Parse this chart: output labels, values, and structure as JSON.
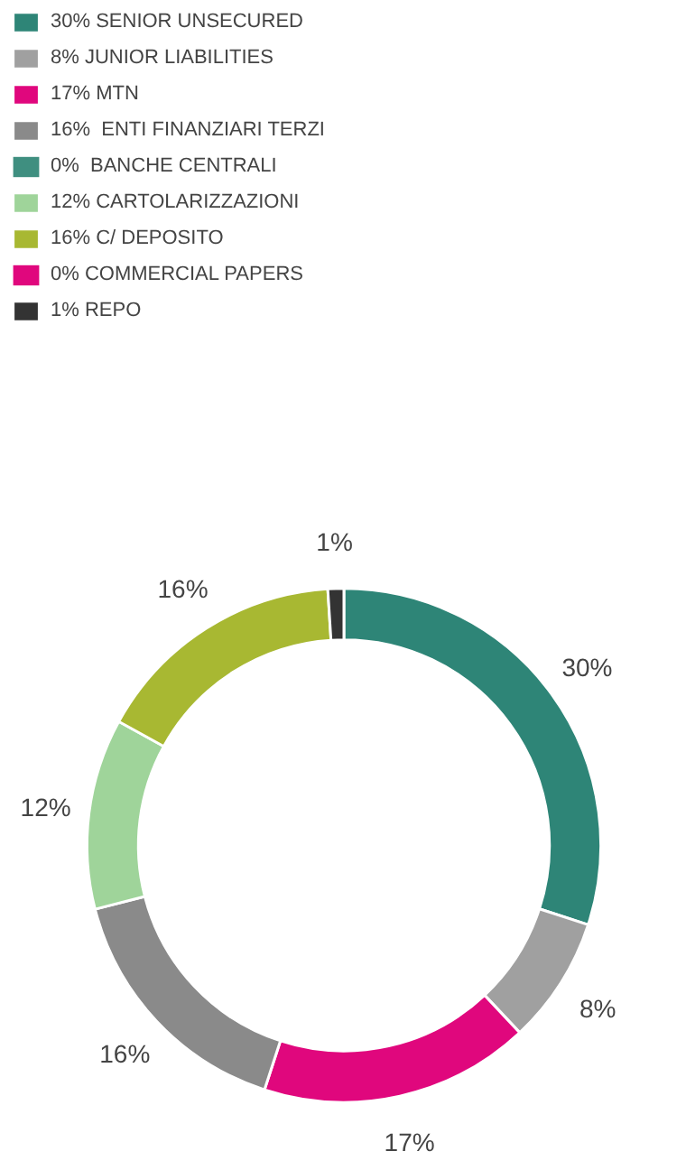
{
  "chart_data": {
    "type": "donut",
    "categories": [
      "30% SENIOR UNSECURED",
      "8% JUNIOR LIABILITIES",
      "17% MTN",
      "16%  ENTI FINANZIARI TERZI",
      "0%  BANCHE CENTRALI",
      "12% CARTOLARIZZAZIONI",
      "16% C/ DEPOSITO",
      "0% COMMERCIAL PAPERS",
      "1% REPO"
    ],
    "values": [
      30,
      8,
      17,
      16,
      0,
      12,
      16,
      0,
      1
    ],
    "colors": [
      "#2e8577",
      "#a0a0a0",
      "#e0077d",
      "#8a8a8a",
      "#3f8f80",
      "#9fd49a",
      "#a8b832",
      "#e0077d",
      "#333333"
    ],
    "value_labels": [
      "30%",
      "8%",
      "17%",
      "16%",
      null,
      "12%",
      "16%",
      null,
      "1%"
    ],
    "legend": "top left"
  }
}
